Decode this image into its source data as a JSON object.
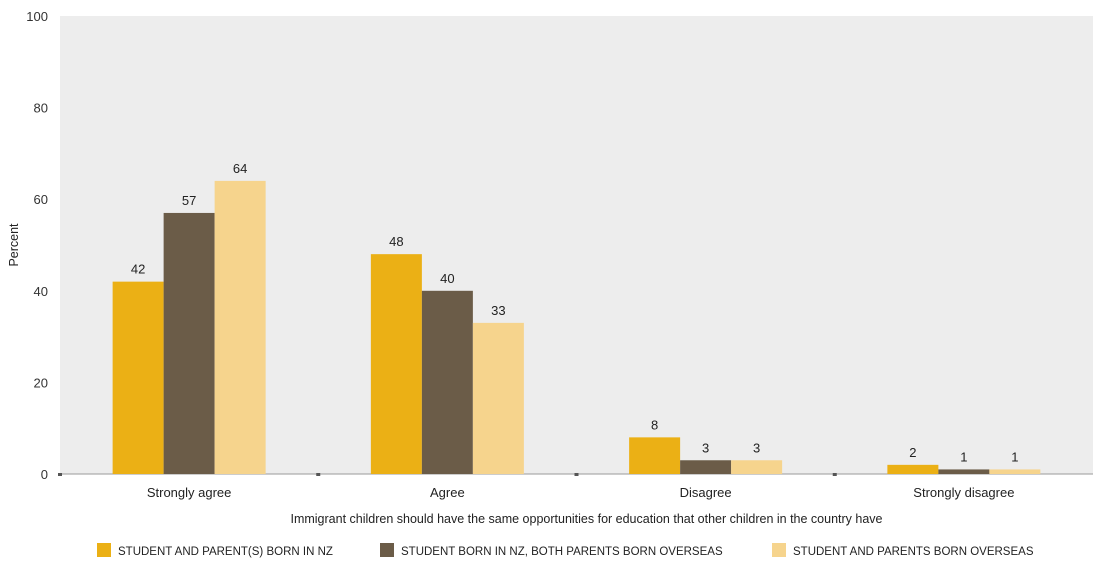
{
  "chart_data": {
    "type": "bar",
    "categories": [
      "Strongly agree",
      "Agree",
      "Disagree",
      "Strongly disagree"
    ],
    "series": [
      {
        "name": "STUDENT AND PARENT(S) BORN IN NZ",
        "values": [
          42,
          48,
          8,
          2
        ],
        "value_labels": [
          "42",
          "48",
          "8",
          "2"
        ],
        "color": "#EBB015"
      },
      {
        "name": "STUDENT BORN IN NZ, BOTH PARENTS BORN OVERSEAS",
        "values": [
          57,
          40,
          3,
          1
        ],
        "value_labels": [
          "57",
          "40",
          "3",
          "1"
        ],
        "color": "#6B5C48"
      },
      {
        "name": "STUDENT AND PARENTS BORN OVERSEAS",
        "values": [
          64,
          33,
          3,
          1
        ],
        "value_labels": [
          "64",
          "33",
          "3",
          "1"
        ],
        "color": "#F6D48D"
      }
    ],
    "xlabel": "Immigrant children should have the same opportunities for education that other children in the country have",
    "ylabel": "Percent",
    "ylim": [
      0,
      100
    ],
    "yticks": [
      "0",
      "20",
      "40",
      "60",
      "80",
      "100"
    ],
    "grid": false,
    "legend_position": "bottom",
    "plot_background": "#EDEDED"
  }
}
